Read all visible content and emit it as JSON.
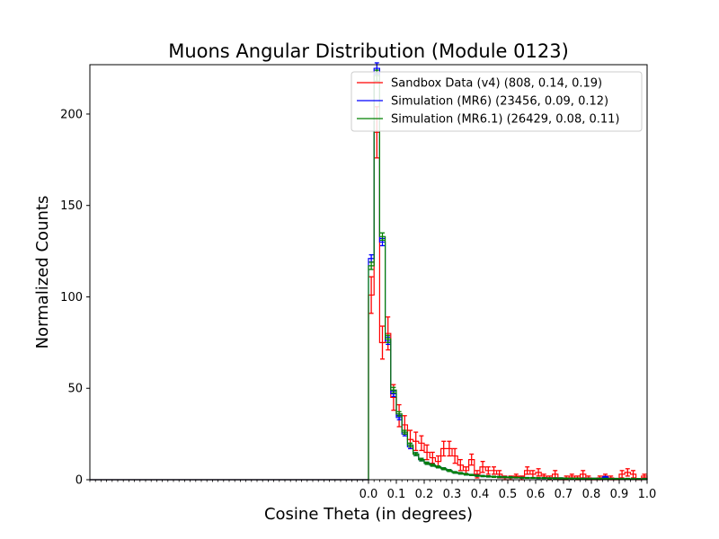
{
  "chart_data": {
    "type": "step-histogram",
    "title": "Muons Angular Distribution (Module 0123)",
    "xlabel": "Cosine Theta (in degrees)",
    "ylabel": "Normalized Counts",
    "xlim": [
      -1.0,
      1.0
    ],
    "ylim": [
      0,
      227
    ],
    "x_ticks": [
      0.0,
      0.1,
      0.2,
      0.3,
      0.4,
      0.5,
      0.6,
      0.7,
      0.8,
      0.9,
      1.0
    ],
    "x_tick_labels": [
      "0.0",
      "0.1",
      "0.2",
      "0.3",
      "0.4",
      "0.5",
      "0.6",
      "0.7",
      "0.8",
      "0.9",
      "1.0"
    ],
    "x_minor_tick_step": 0.02,
    "y_ticks": [
      0,
      50,
      100,
      150,
      200
    ],
    "y_tick_labels": [
      "0",
      "50",
      "100",
      "150",
      "200"
    ],
    "grid": false,
    "legend_position": "top-right",
    "bin_width": 0.02,
    "bin_start": 0.0,
    "series": [
      {
        "name": "Sandbox Data (v4) (808, 0.14, 0.19)",
        "color": "#ff0000",
        "values": [
          101,
          190,
          75,
          80,
          45,
          35,
          30,
          22,
          21,
          20,
          15,
          12,
          10,
          17,
          17,
          13,
          8,
          5,
          11,
          3,
          7,
          5,
          5,
          3,
          1,
          1,
          2,
          1,
          5,
          3,
          4,
          2,
          1,
          3,
          0,
          1,
          2,
          1,
          3,
          1,
          0,
          1,
          2,
          1,
          0,
          3,
          4,
          3,
          0,
          2
        ],
        "errors": [
          10,
          14,
          9,
          9,
          7,
          6,
          5,
          5,
          5,
          4,
          4,
          3,
          3,
          4,
          4,
          4,
          3,
          2,
          3,
          2,
          3,
          2,
          2,
          2,
          1,
          1,
          1,
          1,
          2,
          2,
          2,
          1,
          1,
          2,
          0,
          1,
          1,
          1,
          2,
          1,
          0,
          1,
          1,
          1,
          0,
          2,
          2,
          2,
          0,
          1
        ]
      },
      {
        "name": "Simulation (MR6) (23456, 0.09, 0.12)",
        "color": "#0000ff",
        "values": [
          121,
          225,
          130,
          76,
          47,
          34,
          25,
          18,
          14,
          11,
          9,
          8,
          7,
          6,
          5,
          4,
          3.5,
          3,
          2.6,
          2.2,
          2,
          1.8,
          1.6,
          1.5,
          1.4,
          1.3,
          1.2,
          1.1,
          1.0,
          1.0,
          0.9,
          0.9,
          0.8,
          0.8,
          0.8,
          0.7,
          0.7,
          0.7,
          0.6,
          0.6,
          0.6,
          0.6,
          1.5,
          0.5,
          0.5,
          0.5,
          0.5,
          0.5,
          0.4,
          0.4
        ],
        "errors": [
          2,
          3,
          2,
          2,
          1.5,
          1.2,
          1,
          1,
          0.8,
          0.7,
          0.6,
          0.6,
          0.5,
          0.5,
          0.5,
          0.4,
          0.4,
          0.4,
          0.3,
          0.3,
          0.3,
          0.3,
          0.3,
          0.3,
          0.3,
          0.3,
          0.2,
          0.2,
          0.2,
          0.2,
          0.2,
          0.2,
          0.2,
          0.2,
          0.2,
          0.2,
          0.2,
          0.2,
          0.2,
          0.2,
          0.2,
          0.2,
          0.3,
          0.2,
          0.2,
          0.2,
          0.2,
          0.2,
          0.2,
          0.2
        ]
      },
      {
        "name": "Simulation (MR6.1) (26429, 0.08, 0.11)",
        "color": "#008000",
        "values": [
          117,
          221,
          133,
          77,
          49,
          36,
          26,
          19,
          14,
          11,
          9,
          8,
          7,
          6,
          5,
          4,
          3.5,
          3,
          2.6,
          2.2,
          2,
          1.8,
          1.6,
          1.5,
          1.4,
          1.3,
          1.2,
          1.1,
          1.0,
          1.0,
          0.9,
          0.9,
          0.8,
          0.8,
          0.8,
          0.7,
          0.7,
          0.7,
          0.6,
          0.6,
          0.6,
          0.6,
          0.6,
          0.5,
          0.5,
          0.5,
          0.5,
          0.5,
          0.4,
          0.4
        ],
        "errors": [
          2,
          3,
          2,
          2,
          1.5,
          1.2,
          1,
          1,
          0.8,
          0.7,
          0.6,
          0.6,
          0.5,
          0.5,
          0.5,
          0.4,
          0.4,
          0.4,
          0.3,
          0.3,
          0.3,
          0.3,
          0.3,
          0.3,
          0.3,
          0.3,
          0.2,
          0.2,
          0.2,
          0.2,
          0.2,
          0.2,
          0.2,
          0.2,
          0.2,
          0.2,
          0.2,
          0.2,
          0.2,
          0.2,
          0.2,
          0.2,
          0.2,
          0.2,
          0.2,
          0.2,
          0.2,
          0.2,
          0.2,
          0.2
        ]
      }
    ]
  }
}
